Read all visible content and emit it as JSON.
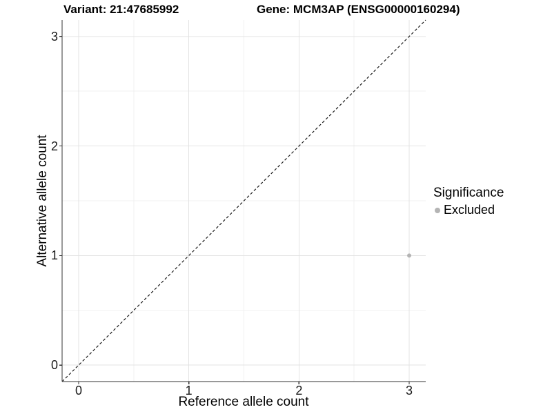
{
  "header": {
    "variant_title": "Variant: 21:47685992",
    "gene_title": "Gene: MCM3AP (ENSG00000160294)"
  },
  "chart_data": {
    "type": "scatter",
    "xlabel": "Reference allele count",
    "ylabel": "Alternative allele count",
    "xlim": [
      -0.15,
      3.15
    ],
    "ylim": [
      -0.15,
      3.15
    ],
    "xticks": [
      0,
      1,
      2,
      3
    ],
    "yticks": [
      0,
      1,
      2,
      3
    ],
    "xticks_minor": [
      0.5,
      1.5,
      2.5
    ],
    "yticks_minor": [
      0.5,
      1.5,
      2.5
    ],
    "grid": "major-and-minor",
    "points": [
      {
        "x": 3,
        "y": 1,
        "significance": "Excluded"
      }
    ],
    "reference_line": {
      "type": "identity",
      "slope": 1,
      "intercept": 0,
      "style": "dashed"
    },
    "legend": {
      "title": "Significance",
      "position": "right",
      "items": [
        {
          "label": "Excluded",
          "color": "#b4b4b4"
        }
      ]
    },
    "colors": {
      "grid_major": "#e3e3e3",
      "grid_minor": "#f0f0f0",
      "axis_line": "#333333",
      "reference_line": "#1a1a1a",
      "point": "#b4b4b4",
      "background": "#ffffff"
    }
  }
}
